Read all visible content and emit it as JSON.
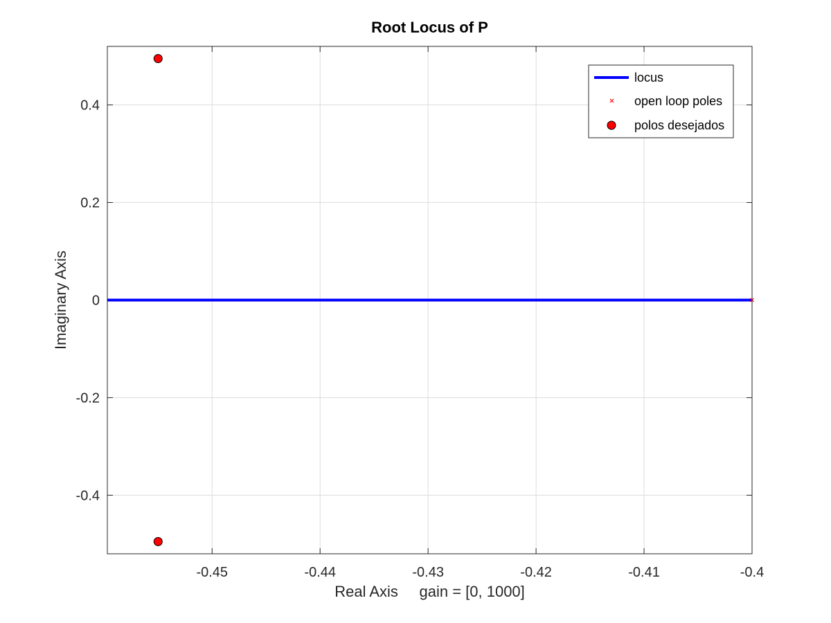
{
  "chart_data": {
    "type": "scatter",
    "title": "Root Locus of P",
    "xlabel": "Real Axis     gain = [0, 1000]",
    "ylabel": "Imaginary Axis",
    "xlim": [
      -0.4597,
      -0.4
    ],
    "ylim": [
      -0.52,
      0.52
    ],
    "xticks": [
      -0.45,
      -0.44,
      -0.43,
      -0.42,
      -0.41,
      -0.4
    ],
    "xtick_labels": [
      "-0.45",
      "-0.44",
      "-0.43",
      "-0.42",
      "-0.41",
      "-0.4"
    ],
    "yticks": [
      -0.4,
      -0.2,
      0,
      0.2,
      0.4
    ],
    "ytick_labels": [
      "-0.4",
      "-0.2",
      "0",
      "0.2",
      "0.4"
    ],
    "grid": true,
    "legend_position": "top-right",
    "series": [
      {
        "name": "locus",
        "kind": "line",
        "color": "#0000ff",
        "x": [
          -0.4597,
          -0.4
        ],
        "y": [
          0,
          0
        ]
      },
      {
        "name": "open loop poles",
        "kind": "x-marker",
        "color": "#ff0000",
        "x": [
          -0.4
        ],
        "y": [
          0
        ]
      },
      {
        "name": "polos desejados",
        "kind": "filled-circle",
        "color": "#ff0000",
        "x": [
          -0.455,
          -0.455
        ],
        "y": [
          0.495,
          -0.495
        ]
      }
    ]
  }
}
